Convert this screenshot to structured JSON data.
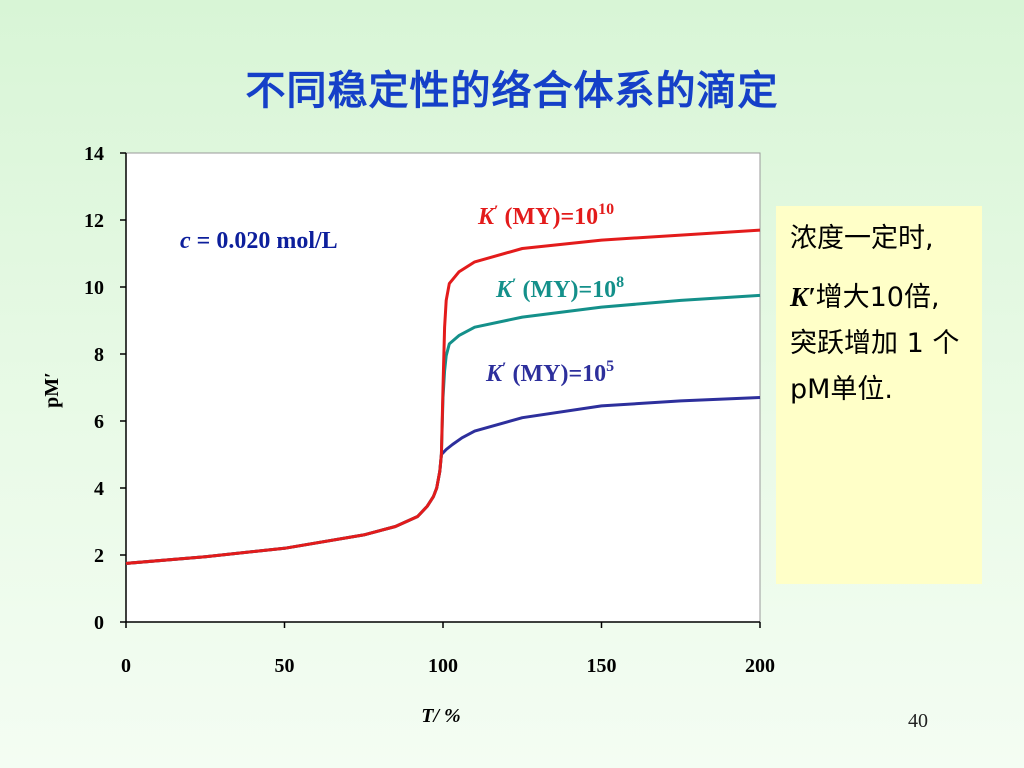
{
  "slide": {
    "title": "不同稳定性的络合体系的滴定",
    "page_number": "40",
    "note": {
      "line1": "浓度一定时,",
      "k_symbol": "K′",
      "line2_after_k": "增大10倍, 突跃增加 1 个pM单位."
    },
    "concentration_note": {
      "symbol": "c",
      "text": " = 0.020 mol/L"
    }
  },
  "colors": {
    "plot_background": "#ffffff",
    "axis": "#000000",
    "concentration_text": "#0d1f9c",
    "title": "#1540c8"
  },
  "chart_data": {
    "type": "line",
    "xlabel": "T/ %",
    "ylabel": "pM′",
    "xlim": [
      0,
      200
    ],
    "ylim": [
      0,
      14
    ],
    "x_ticks": [
      0,
      50,
      100,
      150,
      200
    ],
    "y_ticks": [
      0,
      2,
      4,
      6,
      8,
      10,
      12,
      14
    ],
    "grid": false,
    "shared_pre_equivalence": {
      "x": [
        0,
        25,
        50,
        75,
        85,
        92,
        95,
        97,
        98,
        99,
        99.5
      ],
      "y": [
        1.75,
        1.95,
        2.2,
        2.6,
        2.85,
        3.15,
        3.45,
        3.75,
        4.0,
        4.5,
        5.0
      ]
    },
    "series": [
      {
        "name": "K′ (MY)=10¹⁰",
        "label_base": "(MY)=10",
        "label_exp": "10",
        "color": "#e31b1b",
        "x": [
          100,
          100.5,
          101,
          102,
          105,
          110,
          125,
          150,
          175,
          200
        ],
        "y": [
          7.0,
          8.8,
          9.6,
          10.1,
          10.45,
          10.75,
          11.15,
          11.4,
          11.55,
          11.7
        ]
      },
      {
        "name": "K′ (MY)=10⁸",
        "label_base": "(MY)=10",
        "label_exp": "8",
        "color": "#14908a",
        "x": [
          100,
          100.5,
          101,
          102,
          105,
          110,
          125,
          150,
          175,
          200
        ],
        "y": [
          6.7,
          7.5,
          7.95,
          8.3,
          8.55,
          8.8,
          9.1,
          9.4,
          9.6,
          9.75
        ]
      },
      {
        "name": "K′ (MY)=10⁵",
        "label_base": "(MY)=10",
        "label_exp": "5",
        "color": "#2d2f9c",
        "x": [
          100,
          101,
          103,
          106,
          110,
          125,
          150,
          175,
          200
        ],
        "y": [
          5.05,
          5.15,
          5.3,
          5.5,
          5.7,
          6.1,
          6.45,
          6.6,
          6.7
        ]
      }
    ]
  }
}
